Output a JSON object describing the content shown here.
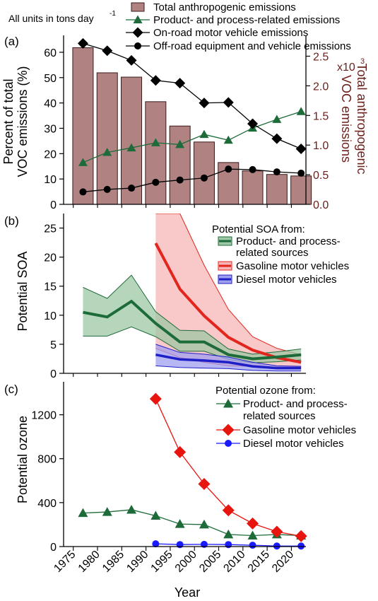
{
  "units_note": "All units in tons day",
  "units_exp": "-1",
  "colors": {
    "bar": "#b08282",
    "bar_stroke": "#3a1a1a",
    "right_axis": "#6b1f1a",
    "product": "#1e6b3a",
    "onroad": "#000000",
    "offroad": "#000000",
    "soa_product_line": "#1e6b3a",
    "soa_product_band": "#9ec8a6",
    "soa_gas_line": "#e2261d",
    "soa_gas_band": "#f7b5b5",
    "soa_diesel_line": "#1f1fc8",
    "soa_diesel_band": "#9f9ff0",
    "oz_product": "#1e6b3a",
    "oz_gas": "#e8150f",
    "oz_diesel": "#1b1bff"
  },
  "xaxis": {
    "label": "Year",
    "ticks": [
      "1975",
      "1980",
      "1985",
      "1990",
      "1995",
      "2000",
      "2005",
      "2010",
      "2015",
      "2020"
    ],
    "range": [
      1973,
      2023
    ]
  },
  "chart_data": [
    {
      "type": "bar",
      "panel_label": "(a)",
      "ylabel_left_lines": [
        "Percent of total",
        "VOC emissions (%)"
      ],
      "ylabel_right_lines": [
        "Total anthropogenic",
        "VOC emissions"
      ],
      "ylim_left": [
        0,
        65
      ],
      "ylim_right": [
        0,
        2.78
      ],
      "yticks_left": [
        "0",
        "10",
        "20",
        "30",
        "40",
        "50",
        "60"
      ],
      "yticks_right": [
        "0.0",
        "0.5",
        "1.0",
        "1.5",
        "2.0",
        "2.5"
      ],
      "right_multiplier": "x10",
      "right_multiplier_exp": "3",
      "legend": [
        {
          "key": "bars",
          "label": "Total anthropogenic emissions"
        },
        {
          "key": "product",
          "label": "Product- and process-related emissions"
        },
        {
          "key": "onroad",
          "label": "On-road motor vehicle emissions"
        },
        {
          "key": "offroad",
          "label": "Off-road equipment and vehicle emissions"
        }
      ],
      "bars": {
        "x": [
          1977,
          1982,
          1987,
          1992,
          1997,
          2002,
          2007,
          2012,
          2017,
          2022
        ],
        "values": [
          61.8,
          51.9,
          50.2,
          40.5,
          30.9,
          24.6,
          16.5,
          13.2,
          11.8,
          11.2
        ]
      },
      "lines": {
        "product": {
          "x": [
            1977,
            1982,
            1987,
            1992,
            1997,
            2002,
            2007,
            2012,
            2017,
            2022
          ],
          "values": [
            16.5,
            20.5,
            22.3,
            24.3,
            23.6,
            27.6,
            25.3,
            30.1,
            33.5,
            36.6
          ]
        },
        "onroad": {
          "x": [
            1977,
            1982,
            1987,
            1992,
            1997,
            2002,
            2007,
            2012,
            2017,
            2022
          ],
          "values": [
            63.5,
            60.6,
            56.8,
            48.9,
            47.8,
            40.0,
            40.2,
            31.8,
            25.9,
            21.9
          ]
        },
        "offroad": {
          "x": [
            1977,
            1982,
            1987,
            1992,
            1997,
            2002,
            2007,
            2012,
            2017,
            2022
          ],
          "values": [
            4.9,
            5.9,
            6.4,
            8.7,
            9.6,
            10.4,
            13.9,
            13.7,
            12.8,
            12.3
          ]
        }
      }
    },
    {
      "type": "line",
      "panel_label": "(b)",
      "ylabel": "Potential SOA",
      "ylim": [
        0,
        27.5
      ],
      "yticks": [
        "0",
        "5",
        "10",
        "15",
        "20",
        "25"
      ],
      "legend_title": "Potential SOA from:",
      "legend": [
        {
          "key": "product",
          "lines": [
            "Product- and process-",
            "related sources"
          ]
        },
        {
          "key": "gas",
          "lines": [
            "Gasoline motor vehicles"
          ]
        },
        {
          "key": "diesel",
          "lines": [
            "Diesel motor vehicles"
          ]
        }
      ],
      "series": {
        "product": {
          "x": [
            1977,
            1982,
            1987,
            1992,
            1997,
            2002,
            2007,
            2012,
            2017,
            2022
          ],
          "mid": [
            10.5,
            9.7,
            12.4,
            8.6,
            5.4,
            5.4,
            3.2,
            2.5,
            2.8,
            3.2
          ],
          "upper": [
            14.8,
            12.9,
            16.9,
            10.6,
            7.4,
            7.3,
            4.2,
            3.3,
            3.7,
            4.2
          ],
          "lower": [
            6.4,
            6.4,
            8.0,
            6.3,
            3.8,
            3.8,
            2.4,
            1.8,
            2.0,
            2.3
          ]
        },
        "gas": {
          "x": [
            1992,
            1997,
            2002,
            2007,
            2012,
            2017,
            2022
          ],
          "mid": [
            22.4,
            14.5,
            9.9,
            6.2,
            4.0,
            2.7,
            1.9
          ],
          "upper": [
            27.5,
            27.5,
            18.6,
            11.0,
            6.3,
            4.3,
            3.2
          ],
          "lower": [
            4.3,
            2.7,
            1.9,
            1.3,
            1.2,
            1.1,
            1.1
          ]
        },
        "diesel": {
          "x": [
            1992,
            1997,
            2002,
            2007,
            2012,
            2017,
            2022
          ],
          "mid": [
            3.2,
            2.4,
            2.2,
            1.9,
            1.2,
            0.9,
            0.9
          ],
          "upper": [
            5.0,
            3.6,
            3.3,
            2.8,
            1.9,
            1.3,
            1.2
          ],
          "lower": [
            1.3,
            1.0,
            0.9,
            0.8,
            0.5,
            0.4,
            0.4
          ]
        }
      }
    },
    {
      "type": "line",
      "panel_label": "(c)",
      "ylabel": "Potential  ozone",
      "ylim": [
        0,
        1500
      ],
      "yticks": [
        "0",
        "400",
        "800",
        "1200"
      ],
      "legend_title": "Potential ozone from:",
      "legend": [
        {
          "key": "product",
          "lines": [
            "Product- and process-",
            "related sources"
          ]
        },
        {
          "key": "gas",
          "lines": [
            "Gasoline motor vehicles"
          ]
        },
        {
          "key": "diesel",
          "lines": [
            "Diesel motor vehicles"
          ]
        }
      ],
      "series": {
        "product": {
          "x": [
            1977,
            1982,
            1987,
            1992,
            1997,
            2002,
            2007,
            2012,
            2017,
            2022
          ],
          "values": [
            305,
            315,
            335,
            280,
            205,
            200,
            110,
            100,
            110,
            100
          ]
        },
        "gas": {
          "x": [
            1992,
            1997,
            2002,
            2007,
            2012,
            2017,
            2022
          ],
          "values": [
            1345,
            860,
            570,
            330,
            210,
            135,
            95
          ]
        },
        "diesel": {
          "x": [
            1992,
            1997,
            2002,
            2007,
            2012,
            2017,
            2022
          ],
          "values": [
            25,
            18,
            20,
            18,
            12,
            5,
            5
          ]
        }
      }
    }
  ]
}
